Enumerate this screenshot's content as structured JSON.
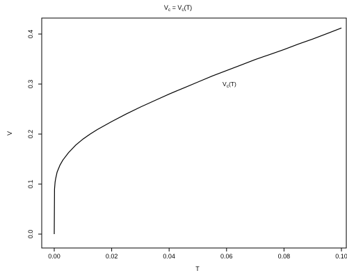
{
  "chart_data": {
    "type": "line",
    "title": {
      "main": "V",
      "sub": "c",
      "mid": " = V",
      "sub2": "c",
      "tail": "(T)"
    },
    "xlabel": "T",
    "ylabel": "V",
    "xlim": [
      0,
      0.1
    ],
    "ylim": [
      0,
      0.41
    ],
    "xticks": [
      0.0,
      0.02,
      0.04,
      0.06,
      0.08,
      0.1
    ],
    "xtick_labels": [
      "0.00",
      "0.02",
      "0.04",
      "0.06",
      "0.08",
      "0.10"
    ],
    "yticks": [
      0.0,
      0.1,
      0.2,
      0.3,
      0.4
    ],
    "ytick_labels": [
      "0.0",
      "0.1",
      "0.2",
      "0.3",
      "0.4"
    ],
    "grid": false,
    "annotation": {
      "main": "V",
      "sub": "c",
      "tail": "(T)",
      "x": 0.061,
      "y": 0.3
    },
    "series": [
      {
        "x": [
          0,
          0.0001,
          0.0003,
          0.0005,
          0.001,
          0.002,
          0.003,
          0.005,
          0.0075,
          0.01,
          0.0125,
          0.015,
          0.02,
          0.025,
          0.03,
          0.035,
          0.04,
          0.045,
          0.05,
          0.055,
          0.06,
          0.065,
          0.07,
          0.075,
          0.08,
          0.085,
          0.09,
          0.095,
          0.1
        ],
        "values": [
          0.0,
          0.09,
          0.104,
          0.111,
          0.124,
          0.138,
          0.148,
          0.163,
          0.178,
          0.19,
          0.2,
          0.209,
          0.225,
          0.24,
          0.254,
          0.267,
          0.28,
          0.292,
          0.304,
          0.316,
          0.327,
          0.338,
          0.349,
          0.359,
          0.369,
          0.38,
          0.39,
          0.401,
          0.412
        ]
      }
    ]
  }
}
